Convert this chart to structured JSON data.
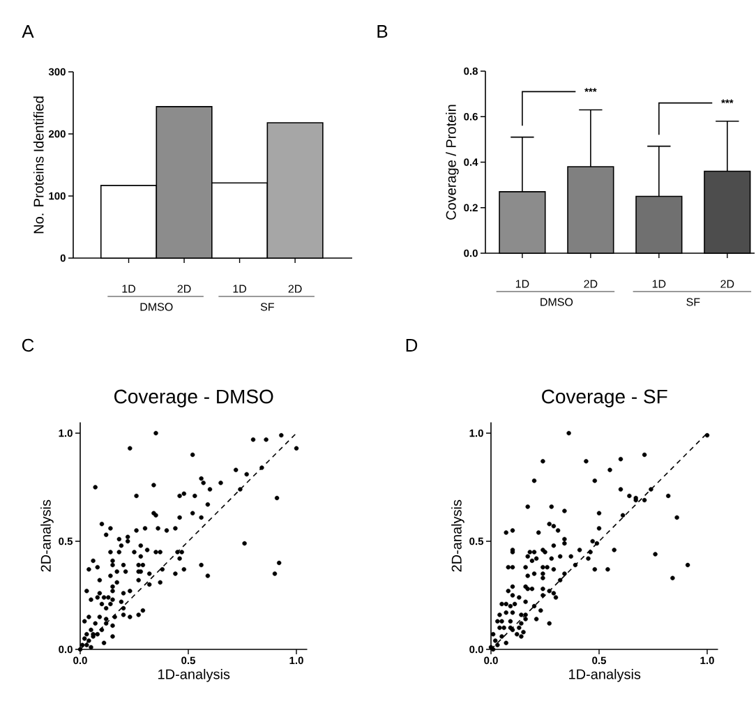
{
  "chart_data": [
    {
      "type": "bar",
      "categories": [
        "1D",
        "2D",
        "1D",
        "2D"
      ],
      "values": [
        117,
        244,
        121,
        218
      ],
      "colors": [
        "#ffffff",
        "#8c8c8c",
        "#ffffff",
        "#a6a6a6"
      ],
      "ylabel": "No. Proteins Identified",
      "ylim": [
        0,
        300
      ],
      "yticks": [
        0,
        100,
        200,
        300
      ],
      "annotations": [
        "A",
        "DMSO",
        "SF"
      ]
    },
    {
      "type": "bar",
      "categories": [
        "1D",
        "2D",
        "1D",
        "2D"
      ],
      "values": [
        0.27,
        0.38,
        0.25,
        0.36
      ],
      "errors": [
        [
          0.27,
          0.51
        ],
        [
          0.38,
          0.63
        ],
        [
          0.25,
          0.47
        ],
        [
          0.36,
          0.58
        ]
      ],
      "colors": [
        "#8c8c8c",
        "#808080",
        "#707070",
        "#4d4d4d"
      ],
      "ylabel": "Coverage / Protein",
      "ylim": [
        0,
        0.8
      ],
      "yticks": [
        {
          "value": 0,
          "label": "0.0"
        },
        {
          "value": 0.2,
          "label": "0.2"
        },
        {
          "value": 0.4,
          "label": "0.4"
        },
        {
          "value": 0.6,
          "label": "0.6"
        },
        {
          "value": 0.8,
          "label": "0.8"
        }
      ],
      "annotations": [
        "B",
        "DMSO",
        "SF",
        "***",
        "***"
      ]
    },
    {
      "type": "scatter",
      "title": "Coverage - DMSO",
      "xlabel": "1D-analysis",
      "ylabel": "2D-analysis",
      "xlim": [
        0,
        1.05
      ],
      "ylim": [
        0,
        1.05
      ],
      "xticks": [
        {
          "value": 0,
          "label": "0.0"
        },
        {
          "value": 0.5,
          "label": "0.5"
        },
        {
          "value": 1,
          "label": "1.0"
        }
      ],
      "yticks": [
        {
          "value": 0,
          "label": "0.0"
        },
        {
          "value": 0.5,
          "label": "0.5"
        },
        {
          "value": 1,
          "label": "1.0"
        }
      ],
      "annotations": [
        "C"
      ],
      "series": [
        {
          "type": "scatter",
          "color": "#000000",
          "marker": "circle",
          "x": [
            0.35,
            0.23,
            0.52,
            0.8,
            0.86,
            0.93,
            1.0,
            0.07,
            0.34,
            0.26,
            0.72,
            0.77,
            0.84,
            0.74,
            0.56,
            0.57,
            0.6,
            0.65,
            0.46,
            0.48,
            0.53,
            0.59,
            0.91,
            0.34,
            0.35,
            0.52,
            0.56,
            0.46,
            0.1,
            0.14,
            0.12,
            0.26,
            0.3,
            0.36,
            0.4,
            0.44,
            0.18,
            0.22,
            0.22,
            0.76,
            0.14,
            0.19,
            0.18,
            0.25,
            0.28,
            0.31,
            0.35,
            0.37,
            0.28,
            0.45,
            0.47,
            0.46,
            0.06,
            0.15,
            0.2,
            0.27,
            0.29,
            0.04,
            0.08,
            0.15,
            0.17,
            0.14,
            0.21,
            0.27,
            0.28,
            0.27,
            0.32,
            0.38,
            0.44,
            0.48,
            0.56,
            0.59,
            0.92,
            0.9,
            0.09,
            0.17,
            0.15,
            0.32,
            0.37,
            0.03,
            0.09,
            0.15,
            0.2,
            0.23,
            0.05,
            0.08,
            0.11,
            0.13,
            0.15,
            0.1,
            0.14,
            0.19,
            0.12,
            0.2,
            0.2,
            0.23,
            0.27,
            0.29,
            0.04,
            0.09,
            0.12,
            0.16,
            0.02,
            0.07,
            0.12,
            0.15,
            0.05,
            0.1,
            0.03,
            0.06,
            0.15,
            0.02,
            0.04,
            0.06,
            0.01,
            0.03,
            0.0,
            0.08,
            0.11,
            0.05
          ],
          "values": [
            1.0,
            0.93,
            0.9,
            0.97,
            0.97,
            0.99,
            0.93,
            0.75,
            0.76,
            0.71,
            0.83,
            0.81,
            0.84,
            0.74,
            0.79,
            0.77,
            0.74,
            0.77,
            0.71,
            0.72,
            0.71,
            0.67,
            0.7,
            0.63,
            0.62,
            0.63,
            0.61,
            0.61,
            0.58,
            0.56,
            0.53,
            0.55,
            0.56,
            0.56,
            0.55,
            0.56,
            0.51,
            0.52,
            0.5,
            0.49,
            0.45,
            0.48,
            0.45,
            0.45,
            0.48,
            0.46,
            0.45,
            0.45,
            0.43,
            0.45,
            0.45,
            0.42,
            0.41,
            0.41,
            0.39,
            0.39,
            0.39,
            0.37,
            0.38,
            0.39,
            0.36,
            0.34,
            0.36,
            0.36,
            0.36,
            0.32,
            0.35,
            0.37,
            0.35,
            0.37,
            0.39,
            0.34,
            0.4,
            0.35,
            0.32,
            0.31,
            0.29,
            0.3,
            0.31,
            0.27,
            0.26,
            0.27,
            0.26,
            0.27,
            0.23,
            0.24,
            0.24,
            0.24,
            0.23,
            0.21,
            0.21,
            0.22,
            0.19,
            0.19,
            0.16,
            0.15,
            0.16,
            0.18,
            0.15,
            0.15,
            0.14,
            0.15,
            0.13,
            0.12,
            0.12,
            0.11,
            0.09,
            0.09,
            0.07,
            0.07,
            0.06,
            0.05,
            0.04,
            0.06,
            0.02,
            0.02,
            0.0,
            0.07,
            0.03,
            0.01
          ]
        },
        {
          "type": "line",
          "color": "#000000",
          "marker": "none",
          "line_style": "dashed",
          "x": [
            0,
            1
          ],
          "values": [
            0,
            1
          ]
        }
      ]
    },
    {
      "type": "scatter",
      "title": "Coverage - SF",
      "xlabel": "1D-analysis",
      "ylabel": "2D-analysis",
      "xlim": [
        0,
        1.05
      ],
      "ylim": [
        0,
        1.05
      ],
      "xticks": [
        {
          "value": 0,
          "label": "0.0"
        },
        {
          "value": 0.5,
          "label": "0.5"
        },
        {
          "value": 1,
          "label": "1.0"
        }
      ],
      "yticks": [
        {
          "value": 0,
          "label": "0.0"
        },
        {
          "value": 0.5,
          "label": "0.5"
        },
        {
          "value": 1,
          "label": "1.0"
        }
      ],
      "annotations": [
        "D"
      ],
      "series": [
        {
          "type": "scatter",
          "color": "#000000",
          "marker": "circle",
          "x": [
            0.36,
            0.24,
            0.44,
            0.6,
            0.71,
            0.55,
            0.2,
            0.48,
            0.6,
            0.74,
            1.0,
            0.64,
            0.67,
            0.67,
            0.71,
            0.82,
            0.17,
            0.28,
            0.34,
            0.5,
            0.61,
            0.86,
            0.27,
            0.29,
            0.31,
            0.07,
            0.1,
            0.22,
            0.5,
            0.34,
            0.34,
            0.47,
            0.49,
            0.1,
            0.1,
            0.18,
            0.2,
            0.24,
            0.25,
            0.29,
            0.41,
            0.46,
            0.57,
            0.76,
            0.17,
            0.19,
            0.21,
            0.28,
            0.32,
            0.37,
            0.45,
            0.39,
            0.08,
            0.1,
            0.16,
            0.24,
            0.26,
            0.29,
            0.48,
            0.54,
            0.91,
            0.84,
            0.17,
            0.2,
            0.24,
            0.24,
            0.34,
            0.32,
            0.1,
            0.08,
            0.16,
            0.17,
            0.19,
            0.24,
            0.24,
            0.27,
            0.29,
            0.3,
            0.1,
            0.13,
            0.16,
            0.05,
            0.07,
            0.09,
            0.11,
            0.2,
            0.23,
            0.04,
            0.07,
            0.1,
            0.14,
            0.16,
            0.21,
            0.03,
            0.05,
            0.09,
            0.14,
            0.16,
            0.27,
            0.04,
            0.06,
            0.1,
            0.09,
            0.13,
            0.12,
            0.15,
            0.01,
            0.05,
            0.14,
            0.02,
            0.0,
            0.03,
            0.07,
            0.01
          ],
          "values": [
            1.0,
            0.87,
            0.87,
            0.88,
            0.9,
            0.83,
            0.78,
            0.78,
            0.74,
            0.74,
            0.99,
            0.71,
            0.7,
            0.69,
            0.69,
            0.71,
            0.66,
            0.66,
            0.64,
            0.63,
            0.62,
            0.61,
            0.58,
            0.57,
            0.55,
            0.54,
            0.55,
            0.54,
            0.56,
            0.51,
            0.49,
            0.5,
            0.49,
            0.46,
            0.45,
            0.45,
            0.45,
            0.46,
            0.45,
            0.48,
            0.46,
            0.45,
            0.46,
            0.44,
            0.43,
            0.41,
            0.42,
            0.42,
            0.43,
            0.43,
            0.42,
            0.39,
            0.38,
            0.38,
            0.38,
            0.38,
            0.38,
            0.37,
            0.37,
            0.37,
            0.39,
            0.33,
            0.34,
            0.35,
            0.35,
            0.33,
            0.35,
            0.32,
            0.29,
            0.27,
            0.29,
            0.28,
            0.28,
            0.28,
            0.25,
            0.27,
            0.26,
            0.24,
            0.25,
            0.24,
            0.22,
            0.21,
            0.21,
            0.2,
            0.21,
            0.2,
            0.18,
            0.16,
            0.17,
            0.17,
            0.16,
            0.16,
            0.14,
            0.13,
            0.13,
            0.13,
            0.12,
            0.14,
            0.12,
            0.1,
            0.1,
            0.09,
            0.1,
            0.1,
            0.07,
            0.08,
            0.07,
            0.06,
            0.06,
            0.04,
            0.01,
            0.02,
            0.03,
            0.0
          ]
        },
        {
          "type": "line",
          "color": "#000000",
          "marker": "none",
          "line_style": "dashed",
          "x": [
            0,
            1
          ],
          "values": [
            0,
            1
          ]
        }
      ]
    }
  ]
}
